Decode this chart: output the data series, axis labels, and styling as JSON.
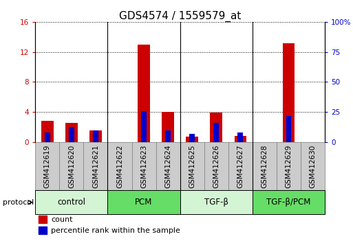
{
  "title": "GDS4574 / 1559579_at",
  "samples": [
    "GSM412619",
    "GSM412620",
    "GSM412621",
    "GSM412622",
    "GSM412623",
    "GSM412624",
    "GSM412625",
    "GSM412626",
    "GSM412627",
    "GSM412628",
    "GSM412629",
    "GSM412630"
  ],
  "count_values": [
    2.8,
    2.6,
    1.6,
    0.0,
    13.0,
    4.0,
    0.7,
    3.9,
    0.8,
    0.0,
    13.2,
    0.0
  ],
  "percentile_values": [
    8.0,
    12.5,
    10.0,
    0.0,
    26.0,
    10.0,
    7.0,
    16.0,
    8.0,
    0.0,
    22.0,
    0.0
  ],
  "groups": [
    {
      "label": "control",
      "start": 0,
      "end": 3,
      "color": "#d4f5d4"
    },
    {
      "label": "PCM",
      "start": 3,
      "end": 6,
      "color": "#66dd66"
    },
    {
      "label": "TGF-β",
      "start": 6,
      "end": 9,
      "color": "#d4f5d4"
    },
    {
      "label": "TGF-β/PCM",
      "start": 9,
      "end": 12,
      "color": "#66dd66"
    }
  ],
  "ylim_left": [
    0,
    16
  ],
  "ylim_right": [
    0,
    100
  ],
  "yticks_left": [
    0,
    4,
    8,
    12,
    16
  ],
  "yticks_right": [
    0,
    25,
    50,
    75,
    100
  ],
  "count_color": "#cc0000",
  "percentile_color": "#0000cc",
  "bar_bg_color": "#cccccc",
  "bar_bg_edge_color": "#888888",
  "grid_color": "black",
  "count_label": "count",
  "percentile_label": "percentile rank within the sample",
  "title_fontsize": 11,
  "tick_fontsize": 7.5,
  "group_fontsize": 8.5,
  "legend_fontsize": 8
}
